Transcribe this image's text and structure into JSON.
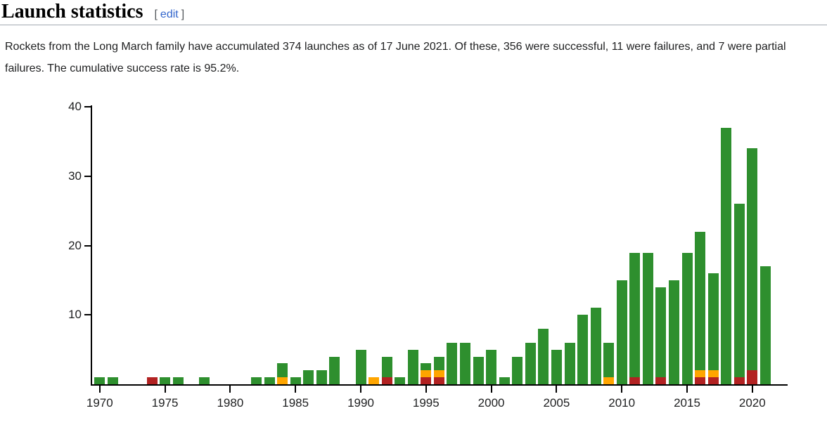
{
  "header": {
    "title": "Launch statistics",
    "edit_bracket_open": "[",
    "edit_label": "edit",
    "edit_bracket_close": "]"
  },
  "paragraph": "Rockets from the Long March family have accumulated 374 launches as of 17 June 2021. Of these, 356 were successful, 11 were failures, and 7 were partial failures. The cumulative success rate is 95.2%.",
  "chart_data": {
    "type": "bar",
    "stacked": true,
    "title": "",
    "xlabel": "",
    "ylabel": "",
    "ylim": [
      0,
      40
    ],
    "grid": false,
    "y_ticks": [
      10,
      20,
      30,
      40
    ],
    "x_tick_years": [
      1970,
      1975,
      1980,
      1985,
      1990,
      1995,
      2000,
      2005,
      2010,
      2015,
      2020
    ],
    "colors": {
      "success": "#2E8F2E",
      "partial_failure": "#FFA500",
      "failure": "#B22222"
    },
    "stack_order_bottom_to_top": [
      "failure",
      "partial_failure",
      "success"
    ],
    "bars": [
      {
        "year": 1970,
        "success": 1,
        "partial_failure": 0,
        "failure": 0
      },
      {
        "year": 1971,
        "success": 1,
        "partial_failure": 0,
        "failure": 0
      },
      {
        "year": 1974,
        "success": 0,
        "partial_failure": 0,
        "failure": 1
      },
      {
        "year": 1975,
        "success": 1,
        "partial_failure": 0,
        "failure": 0
      },
      {
        "year": 1976,
        "success": 1,
        "partial_failure": 0,
        "failure": 0
      },
      {
        "year": 1978,
        "success": 1,
        "partial_failure": 0,
        "failure": 0
      },
      {
        "year": 1982,
        "success": 1,
        "partial_failure": 0,
        "failure": 0
      },
      {
        "year": 1983,
        "success": 1,
        "partial_failure": 0,
        "failure": 0
      },
      {
        "year": 1984,
        "success": 2,
        "partial_failure": 1,
        "failure": 0
      },
      {
        "year": 1985,
        "success": 1,
        "partial_failure": 0,
        "failure": 0
      },
      {
        "year": 1986,
        "success": 2,
        "partial_failure": 0,
        "failure": 0
      },
      {
        "year": 1987,
        "success": 2,
        "partial_failure": 0,
        "failure": 0
      },
      {
        "year": 1988,
        "success": 4,
        "partial_failure": 0,
        "failure": 0
      },
      {
        "year": 1990,
        "success": 5,
        "partial_failure": 0,
        "failure": 0
      },
      {
        "year": 1991,
        "success": 0,
        "partial_failure": 1,
        "failure": 0
      },
      {
        "year": 1992,
        "success": 3,
        "partial_failure": 0,
        "failure": 1
      },
      {
        "year": 1993,
        "success": 1,
        "partial_failure": 0,
        "failure": 0
      },
      {
        "year": 1994,
        "success": 5,
        "partial_failure": 0,
        "failure": 0
      },
      {
        "year": 1995,
        "success": 1,
        "partial_failure": 1,
        "failure": 1
      },
      {
        "year": 1996,
        "success": 2,
        "partial_failure": 1,
        "failure": 1
      },
      {
        "year": 1997,
        "success": 6,
        "partial_failure": 0,
        "failure": 0
      },
      {
        "year": 1998,
        "success": 6,
        "partial_failure": 0,
        "failure": 0
      },
      {
        "year": 1999,
        "success": 4,
        "partial_failure": 0,
        "failure": 0
      },
      {
        "year": 2000,
        "success": 5,
        "partial_failure": 0,
        "failure": 0
      },
      {
        "year": 2001,
        "success": 1,
        "partial_failure": 0,
        "failure": 0
      },
      {
        "year": 2002,
        "success": 4,
        "partial_failure": 0,
        "failure": 0
      },
      {
        "year": 2003,
        "success": 6,
        "partial_failure": 0,
        "failure": 0
      },
      {
        "year": 2004,
        "success": 8,
        "partial_failure": 0,
        "failure": 0
      },
      {
        "year": 2005,
        "success": 5,
        "partial_failure": 0,
        "failure": 0
      },
      {
        "year": 2006,
        "success": 6,
        "partial_failure": 0,
        "failure": 0
      },
      {
        "year": 2007,
        "success": 10,
        "partial_failure": 0,
        "failure": 0
      },
      {
        "year": 2008,
        "success": 11,
        "partial_failure": 0,
        "failure": 0
      },
      {
        "year": 2009,
        "success": 5,
        "partial_failure": 1,
        "failure": 0
      },
      {
        "year": 2010,
        "success": 15,
        "partial_failure": 0,
        "failure": 0
      },
      {
        "year": 2011,
        "success": 18,
        "partial_failure": 0,
        "failure": 1
      },
      {
        "year": 2012,
        "success": 19,
        "partial_failure": 0,
        "failure": 0
      },
      {
        "year": 2013,
        "success": 13,
        "partial_failure": 0,
        "failure": 1
      },
      {
        "year": 2014,
        "success": 15,
        "partial_failure": 0,
        "failure": 0
      },
      {
        "year": 2015,
        "success": 19,
        "partial_failure": 0,
        "failure": 0
      },
      {
        "year": 2016,
        "success": 20,
        "partial_failure": 1,
        "failure": 1
      },
      {
        "year": 2017,
        "success": 14,
        "partial_failure": 1,
        "failure": 1
      },
      {
        "year": 2018,
        "success": 37,
        "partial_failure": 0,
        "failure": 0
      },
      {
        "year": 2019,
        "success": 25,
        "partial_failure": 0,
        "failure": 1
      },
      {
        "year": 2020,
        "success": 32,
        "partial_failure": 0,
        "failure": 2
      },
      {
        "year": 2021,
        "success": 17,
        "partial_failure": 0,
        "failure": 0
      }
    ]
  }
}
